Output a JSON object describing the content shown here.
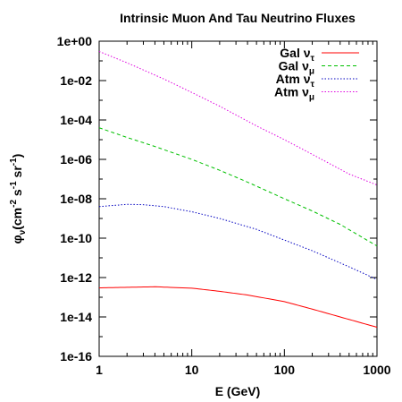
{
  "chart_data": {
    "type": "line",
    "title": "Intrinsic Muon And Tau Neutrino Fluxes",
    "xlabel": "E (GeV)",
    "ylabel": {
      "base": "φ",
      "base_sub": "ν",
      "unit_open": "(cm",
      "unit_sup1": "-2",
      "unit_mid": " s",
      "unit_sup2": "-1",
      "unit_sr": " sr",
      "unit_sup3": "-1",
      "unit_close": ")"
    },
    "xscale": "log",
    "yscale": "log",
    "xlim": [
      1,
      1000
    ],
    "ylim": [
      1e-16,
      1
    ],
    "xticks": [
      {
        "value": 1,
        "label": "1"
      },
      {
        "value": 10,
        "label": "10"
      },
      {
        "value": 100,
        "label": "100"
      },
      {
        "value": 1000,
        "label": "1000"
      }
    ],
    "yticks": [
      {
        "value": 1,
        "label": "1e+00"
      },
      {
        "value": 0.01,
        "label": "1e-02"
      },
      {
        "value": 0.0001,
        "label": "1e-04"
      },
      {
        "value": 1e-06,
        "label": "1e-06"
      },
      {
        "value": 1e-08,
        "label": "1e-08"
      },
      {
        "value": 1e-10,
        "label": "1e-10"
      },
      {
        "value": 1e-12,
        "label": "1e-12"
      },
      {
        "value": 1e-14,
        "label": "1e-14"
      },
      {
        "value": 1e-16,
        "label": "1e-16"
      }
    ],
    "legend_position": "top-right",
    "series": [
      {
        "name": "Gal ν_τ",
        "label_main": "Gal ν",
        "label_sub": "τ",
        "color": "#ff0000",
        "dash": "solid",
        "x": [
          1,
          2,
          4,
          10,
          20,
          40,
          100,
          200,
          400,
          1000
        ],
        "y": [
          3e-13,
          3.2e-13,
          3.4e-13,
          2.9e-13,
          2e-13,
          1.3e-13,
          6e-14,
          2.5e-14,
          1e-14,
          3e-15
        ]
      },
      {
        "name": "Gal ν_μ",
        "label_main": "Gal ν",
        "label_sub": "μ",
        "color": "#00c000",
        "dash": "dashed",
        "x": [
          1,
          2,
          4,
          10,
          20,
          40,
          100,
          200,
          400,
          1000
        ],
        "y": [
          4e-05,
          1.3e-05,
          4.5e-06,
          1e-06,
          2.8e-07,
          7e-08,
          1e-08,
          2.4e-09,
          5e-10,
          4e-11
        ]
      },
      {
        "name": "Atm ν_τ",
        "label_main": "Atm ν",
        "label_sub": "τ",
        "color": "#0000c0",
        "dash": "dotted",
        "x": [
          1,
          2,
          3,
          5,
          10,
          20,
          50,
          100,
          200,
          500,
          1000
        ],
        "y": [
          4e-09,
          5.2e-09,
          5e-09,
          4e-09,
          2.2e-09,
          1e-09,
          2.8e-10,
          8e-11,
          2.3e-11,
          3.5e-12,
          8e-13
        ]
      },
      {
        "name": "Atm ν_μ",
        "label_main": "Atm ν",
        "label_sub": "μ",
        "color": "#e000e0",
        "dash": "dotted",
        "x": [
          1,
          2,
          5,
          10,
          20,
          50,
          100,
          200,
          500,
          1000
        ],
        "y": [
          0.3,
          0.08,
          0.012,
          0.0025,
          0.0005,
          5e-05,
          1e-05,
          1.8e-06,
          1.8e-07,
          5e-08
        ]
      }
    ]
  }
}
